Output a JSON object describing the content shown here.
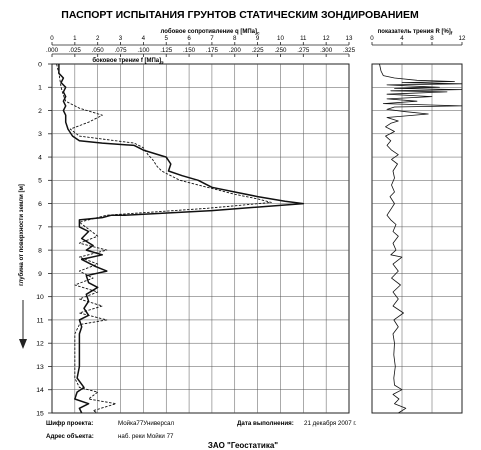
{
  "title": "ПАСПОРТ ИСПЫТАНИЯ ГРУНТОВ СТАТИЧЕСКИМ ЗОНДИРОВАНИЕМ",
  "company": "ЗАО \"Геостатика\"",
  "footer": {
    "cipher_label": "Шифр проекта:",
    "cipher_value": "Мойка77Универсал",
    "address_label": "Адрес объекта:",
    "address_value": "наб. реки Мойки 77",
    "date_label": "Дата выполнения:",
    "date_value": "21 декабря 2007 г."
  },
  "chart_data": [
    {
      "type": "line",
      "title": "",
      "ylabel": "глубина от поверхности земли [м]",
      "ylim": [
        0,
        15
      ],
      "y_ticks": [
        "0",
        "1",
        "2",
        "3",
        "4",
        "5",
        "6",
        "7",
        "8",
        "9",
        "10",
        "11",
        "12",
        "13",
        "14",
        "15"
      ],
      "y_inverted": true,
      "grid": true,
      "top_axis": {
        "label": "лобовое сопротивление q  [МПа]",
        "label_sub": "c",
        "range": [
          0,
          13
        ],
        "ticks": [
          "0",
          "1",
          "2",
          "3",
          "4",
          "5",
          "6",
          "7",
          "8",
          "9",
          "10",
          "11",
          "12",
          "13"
        ]
      },
      "bottom_axis": {
        "label": "боковое трение f  [МПа]",
        "label_sub": "s",
        "range": [
          0,
          0.325
        ],
        "ticks": [
          ".000",
          ".025",
          ".050",
          ".075",
          ".100",
          ".125",
          ".150",
          ".175",
          ".200",
          ".225",
          ".250",
          ".275",
          ".300",
          ".325"
        ]
      },
      "series": [
        {
          "style": "solid",
          "axis": "top",
          "points": [
            [
              0.3,
              0.0
            ],
            [
              0.3,
              0.4
            ],
            [
              0.5,
              0.6
            ],
            [
              0.4,
              0.8
            ],
            [
              0.6,
              1.0
            ],
            [
              0.5,
              1.2
            ],
            [
              0.6,
              1.4
            ],
            [
              0.5,
              1.6
            ],
            [
              0.6,
              1.8
            ],
            [
              0.5,
              2.0
            ],
            [
              0.6,
              2.2
            ],
            [
              0.6,
              2.5
            ],
            [
              0.7,
              2.8
            ],
            [
              0.9,
              3.1
            ],
            [
              1.2,
              3.3
            ],
            [
              2.2,
              3.4
            ],
            [
              3.6,
              3.5
            ],
            [
              4.0,
              3.7
            ],
            [
              5.0,
              4.0
            ],
            [
              5.2,
              4.3
            ],
            [
              5.1,
              4.6
            ],
            [
              5.7,
              4.8
            ],
            [
              6.4,
              5.0
            ],
            [
              7.0,
              5.3
            ],
            [
              8.0,
              5.5
            ],
            [
              9.0,
              5.7
            ],
            [
              10.2,
              5.9
            ],
            [
              11.0,
              6.0
            ],
            [
              7.0,
              6.3
            ],
            [
              3.2,
              6.5
            ],
            [
              2.6,
              6.5
            ],
            [
              2.2,
              6.6
            ],
            [
              1.2,
              6.7
            ],
            [
              1.2,
              7.0
            ],
            [
              1.6,
              7.2
            ],
            [
              1.3,
              7.5
            ],
            [
              1.8,
              7.8
            ],
            [
              1.5,
              8.0
            ],
            [
              2.2,
              8.2
            ],
            [
              1.3,
              8.4
            ],
            [
              1.9,
              8.7
            ],
            [
              2.4,
              8.9
            ],
            [
              1.5,
              9.1
            ],
            [
              1.6,
              9.4
            ],
            [
              2.0,
              9.6
            ],
            [
              1.5,
              9.9
            ],
            [
              1.6,
              10.2
            ],
            [
              1.4,
              10.5
            ],
            [
              1.6,
              10.8
            ],
            [
              1.2,
              11.0
            ],
            [
              1.3,
              11.3
            ],
            [
              1.2,
              11.6
            ],
            [
              1.2,
              12.0
            ],
            [
              1.2,
              12.5
            ],
            [
              1.2,
              13.0
            ],
            [
              1.1,
              13.5
            ],
            [
              1.4,
              13.9
            ],
            [
              1.1,
              14.1
            ],
            [
              1.0,
              14.4
            ],
            [
              1.6,
              14.6
            ],
            [
              1.2,
              14.8
            ],
            [
              1.3,
              15.0
            ]
          ]
        },
        {
          "style": "dashed",
          "axis": "bottom",
          "points": [
            [
              0.005,
              0.0
            ],
            [
              0.008,
              0.5
            ],
            [
              0.01,
              1.0
            ],
            [
              0.012,
              1.3
            ],
            [
              0.015,
              1.6
            ],
            [
              0.03,
              1.9
            ],
            [
              0.055,
              2.2
            ],
            [
              0.04,
              2.5
            ],
            [
              0.02,
              2.8
            ],
            [
              0.03,
              3.1
            ],
            [
              0.09,
              3.4
            ],
            [
              0.1,
              3.6
            ],
            [
              0.105,
              3.9
            ],
            [
              0.11,
              4.1
            ],
            [
              0.115,
              4.4
            ],
            [
              0.12,
              4.6
            ],
            [
              0.13,
              4.8
            ],
            [
              0.14,
              5.0
            ],
            [
              0.16,
              5.2
            ],
            [
              0.18,
              5.4
            ],
            [
              0.2,
              5.6
            ],
            [
              0.225,
              5.8
            ],
            [
              0.24,
              5.95
            ],
            [
              0.17,
              6.2
            ],
            [
              0.06,
              6.5
            ],
            [
              0.03,
              6.8
            ],
            [
              0.04,
              7.1
            ],
            [
              0.05,
              7.4
            ],
            [
              0.03,
              7.7
            ],
            [
              0.06,
              8.0
            ],
            [
              0.03,
              8.3
            ],
            [
              0.05,
              8.6
            ],
            [
              0.03,
              8.9
            ],
            [
              0.045,
              9.2
            ],
            [
              0.025,
              9.5
            ],
            [
              0.05,
              9.8
            ],
            [
              0.03,
              10.1
            ],
            [
              0.055,
              10.4
            ],
            [
              0.03,
              10.7
            ],
            [
              0.06,
              11.0
            ],
            [
              0.03,
              11.2
            ],
            [
              0.025,
              11.6
            ],
            [
              0.025,
              12.0
            ],
            [
              0.025,
              12.5
            ],
            [
              0.025,
              13.0
            ],
            [
              0.025,
              13.5
            ],
            [
              0.03,
              13.9
            ],
            [
              0.05,
              14.1
            ],
            [
              0.04,
              14.4
            ],
            [
              0.07,
              14.6
            ],
            [
              0.045,
              14.9
            ],
            [
              0.05,
              15.0
            ]
          ]
        }
      ]
    },
    {
      "type": "line",
      "title": "показатель трения R  [%]",
      "title_sub": "f",
      "xlim": [
        0,
        12
      ],
      "x_ticks": [
        "0",
        "4",
        "8",
        "12"
      ],
      "ylim": [
        0,
        15
      ],
      "grid": true,
      "series": [
        {
          "style": "solid",
          "points": [
            [
              1.0,
              0.0
            ],
            [
              1.2,
              0.3
            ],
            [
              1.5,
              0.5
            ],
            [
              3.0,
              0.6
            ],
            [
              6.0,
              0.7
            ],
            [
              11.0,
              0.75
            ],
            [
              4.0,
              0.8
            ],
            [
              12.0,
              0.85
            ],
            [
              2.0,
              0.9
            ],
            [
              9.0,
              1.0
            ],
            [
              3.0,
              1.05
            ],
            [
              12.0,
              1.1
            ],
            [
              2.5,
              1.15
            ],
            [
              10.0,
              1.2
            ],
            [
              2.0,
              1.3
            ],
            [
              8.0,
              1.4
            ],
            [
              2.0,
              1.5
            ],
            [
              6.0,
              1.6
            ],
            [
              1.5,
              1.7
            ],
            [
              12.0,
              1.8
            ],
            [
              3.0,
              1.85
            ],
            [
              2.0,
              1.95
            ],
            [
              4.5,
              2.05
            ],
            [
              7.5,
              2.15
            ],
            [
              2.0,
              2.3
            ],
            [
              3.5,
              2.45
            ],
            [
              2.5,
              2.55
            ],
            [
              1.8,
              2.7
            ],
            [
              3.0,
              2.9
            ],
            [
              1.8,
              3.1
            ],
            [
              2.5,
              3.3
            ],
            [
              2.0,
              3.5
            ],
            [
              2.6,
              3.7
            ],
            [
              3.5,
              3.9
            ],
            [
              2.6,
              4.1
            ],
            [
              3.4,
              4.3
            ],
            [
              2.8,
              4.6
            ],
            [
              3.0,
              4.9
            ],
            [
              2.6,
              5.2
            ],
            [
              3.0,
              5.5
            ],
            [
              2.4,
              5.7
            ],
            [
              3.0,
              6.0
            ],
            [
              2.6,
              6.2
            ],
            [
              2.0,
              6.5
            ],
            [
              2.5,
              6.7
            ],
            [
              3.2,
              6.9
            ],
            [
              2.8,
              7.2
            ],
            [
              3.5,
              7.4
            ],
            [
              2.8,
              7.7
            ],
            [
              3.2,
              8.0
            ],
            [
              2.5,
              8.2
            ],
            [
              4.0,
              8.3
            ],
            [
              2.8,
              8.6
            ],
            [
              3.5,
              8.9
            ],
            [
              2.6,
              9.2
            ],
            [
              3.8,
              9.5
            ],
            [
              2.8,
              9.8
            ],
            [
              3.5,
              10.1
            ],
            [
              2.8,
              10.4
            ],
            [
              4.2,
              10.7
            ],
            [
              2.9,
              11.0
            ],
            [
              3.5,
              11.3
            ],
            [
              2.8,
              11.6
            ],
            [
              3.0,
              12.0
            ],
            [
              2.9,
              12.5
            ],
            [
              3.1,
              13.0
            ],
            [
              2.9,
              13.5
            ],
            [
              3.0,
              13.8
            ],
            [
              4.0,
              14.0
            ],
            [
              2.8,
              14.2
            ],
            [
              3.6,
              14.4
            ],
            [
              3.0,
              14.6
            ],
            [
              4.5,
              14.8
            ],
            [
              3.5,
              15.0
            ]
          ]
        }
      ]
    }
  ]
}
